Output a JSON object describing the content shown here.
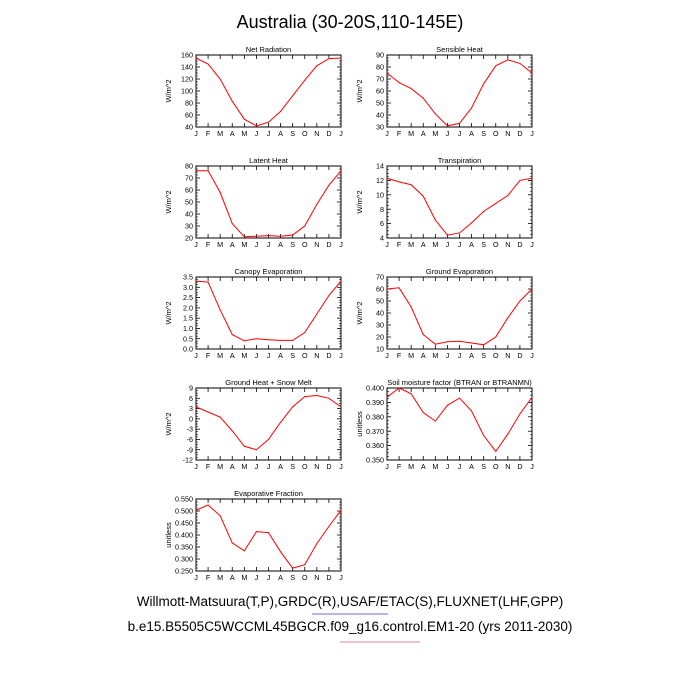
{
  "title": "Australia (30-20S,110-145E)",
  "credits": {
    "line1": "Willmott-Matsuura(T,P),GRDC(R),USAF/ETAC(S),FLUXNET(LHF,GPP)",
    "line2": "b.e15.B5505C5WCCML45BGCR.f09_g16.control.EM1-20 (yrs 2011-2030)"
  },
  "colors": {
    "line": "#ff0000",
    "axis": "#000000",
    "underline_blue": "#3a3ad0",
    "underline_red": "#e0507a"
  },
  "chart_data": [
    {
      "type": "line",
      "title": "Net Radiation",
      "ylabel": "W/m^2",
      "ylim": [
        40,
        160
      ],
      "yticks": [
        40,
        60,
        80,
        100,
        120,
        140,
        160
      ],
      "yticklabels": [
        "40",
        "60",
        "80",
        "100",
        "120",
        "140",
        "160"
      ],
      "x": [
        "J",
        "F",
        "M",
        "A",
        "M",
        "J",
        "J",
        "A",
        "S",
        "O",
        "N",
        "D",
        "J"
      ],
      "values": [
        155,
        145,
        120,
        83,
        53,
        42,
        48,
        66,
        92,
        118,
        142,
        154,
        155
      ]
    },
    {
      "type": "line",
      "title": "Sensible Heat",
      "ylabel": "W/m^2",
      "ylim": [
        30,
        90
      ],
      "yticks": [
        30,
        40,
        50,
        60,
        70,
        80,
        90
      ],
      "yticklabels": [
        "30",
        "40",
        "50",
        "60",
        "70",
        "80",
        "90"
      ],
      "x": [
        "J",
        "F",
        "M",
        "A",
        "M",
        "J",
        "J",
        "A",
        "S",
        "O",
        "N",
        "D",
        "J"
      ],
      "values": [
        75,
        67,
        62,
        54,
        41,
        31,
        33,
        46,
        66,
        81,
        86,
        83,
        75
      ]
    },
    {
      "type": "line",
      "title": "Latent Heat",
      "ylabel": "W/m^2",
      "ylim": [
        20,
        80
      ],
      "yticks": [
        20,
        30,
        40,
        50,
        60,
        70,
        80
      ],
      "yticklabels": [
        "20",
        "30",
        "40",
        "50",
        "60",
        "70",
        "80"
      ],
      "x": [
        "J",
        "F",
        "M",
        "A",
        "M",
        "J",
        "J",
        "A",
        "S",
        "O",
        "N",
        "D",
        "J"
      ],
      "values": [
        76,
        76,
        58,
        32,
        21,
        21.5,
        22,
        21.5,
        22.5,
        30,
        48,
        64,
        76
      ]
    },
    {
      "type": "line",
      "title": "Transpiration",
      "ylabel": "W/m^2",
      "ylim": [
        4,
        14
      ],
      "yticks": [
        4,
        6,
        8,
        10,
        12,
        14
      ],
      "yticklabels": [
        "4",
        "6",
        "8",
        "10",
        "12",
        "14"
      ],
      "x": [
        "J",
        "F",
        "M",
        "A",
        "M",
        "J",
        "J",
        "A",
        "S",
        "O",
        "N",
        "D",
        "J"
      ],
      "values": [
        12.3,
        11.8,
        11.4,
        9.8,
        6.5,
        4.4,
        4.7,
        6.1,
        7.7,
        8.8,
        9.9,
        12.0,
        12.3
      ]
    },
    {
      "type": "line",
      "title": "Canopy Evaporation",
      "ylabel": "W/m^2",
      "ylim": [
        0.0,
        3.5
      ],
      "yticks": [
        0.0,
        0.5,
        1.0,
        1.5,
        2.0,
        2.5,
        3.0,
        3.5
      ],
      "yticklabels": [
        "0.0",
        "0.5",
        "1.0",
        "1.5",
        "2.0",
        "2.5",
        "3.0",
        "3.5"
      ],
      "x": [
        "J",
        "F",
        "M",
        "A",
        "M",
        "J",
        "J",
        "A",
        "S",
        "O",
        "N",
        "D",
        "J"
      ],
      "values": [
        3.3,
        3.25,
        1.9,
        0.7,
        0.4,
        0.5,
        0.45,
        0.42,
        0.42,
        0.8,
        1.7,
        2.6,
        3.3
      ]
    },
    {
      "type": "line",
      "title": "Ground Evaporation",
      "ylabel": "W/m^2",
      "ylim": [
        10,
        70
      ],
      "yticks": [
        10,
        20,
        30,
        40,
        50,
        60,
        70
      ],
      "yticklabels": [
        "10",
        "20",
        "30",
        "40",
        "50",
        "60",
        "70"
      ],
      "x": [
        "J",
        "F",
        "M",
        "A",
        "M",
        "J",
        "J",
        "A",
        "S",
        "O",
        "N",
        "D",
        "J"
      ],
      "values": [
        60,
        61,
        45,
        22,
        14,
        16,
        16.5,
        15,
        13.5,
        20,
        36,
        50,
        60
      ]
    },
    {
      "type": "line",
      "title": "Ground Heat + Snow Melt",
      "ylabel": "W/m^2",
      "ylim": [
        -12,
        9
      ],
      "yticks": [
        -12,
        -9,
        -6,
        -3,
        0,
        3,
        6,
        9
      ],
      "yticklabels": [
        "-12",
        "-9",
        "-6",
        "-3",
        "0",
        "3",
        "6",
        "9"
      ],
      "x": [
        "J",
        "F",
        "M",
        "A",
        "M",
        "J",
        "J",
        "A",
        "S",
        "O",
        "N",
        "D",
        "J"
      ],
      "values": [
        3.5,
        2,
        0.5,
        -3.5,
        -8,
        -9,
        -6,
        -1,
        3.5,
        6.5,
        6.8,
        6,
        3.5
      ]
    },
    {
      "type": "line",
      "title": "Soil moisture factor (BTRAN or BTRANMN)",
      "ylabel": "unitless",
      "ylim": [
        0.35,
        0.4
      ],
      "yticks": [
        0.35,
        0.36,
        0.37,
        0.38,
        0.39,
        0.4
      ],
      "yticklabels": [
        "0.350",
        "0.360",
        "0.370",
        "0.380",
        "0.390",
        "0.400"
      ],
      "x": [
        "J",
        "F",
        "M",
        "A",
        "M",
        "J",
        "J",
        "A",
        "S",
        "O",
        "N",
        "D",
        "J"
      ],
      "values": [
        0.3935,
        0.4,
        0.396,
        0.383,
        0.377,
        0.388,
        0.393,
        0.384,
        0.367,
        0.356,
        0.368,
        0.382,
        0.3935
      ]
    },
    {
      "type": "line",
      "title": "Evaporative Fraction",
      "ylabel": "unitless",
      "ylim": [
        0.25,
        0.55
      ],
      "yticks": [
        0.25,
        0.3,
        0.35,
        0.4,
        0.45,
        0.5,
        0.55
      ],
      "yticklabels": [
        "0.250",
        "0.300",
        "0.350",
        "0.400",
        "0.450",
        "0.500",
        "0.550"
      ],
      "x": [
        "J",
        "F",
        "M",
        "A",
        "M",
        "J",
        "J",
        "A",
        "S",
        "O",
        "N",
        "D",
        "J"
      ],
      "values": [
        0.503,
        0.525,
        0.48,
        0.367,
        0.334,
        0.414,
        0.41,
        0.33,
        0.262,
        0.276,
        0.364,
        0.436,
        0.503
      ]
    }
  ]
}
